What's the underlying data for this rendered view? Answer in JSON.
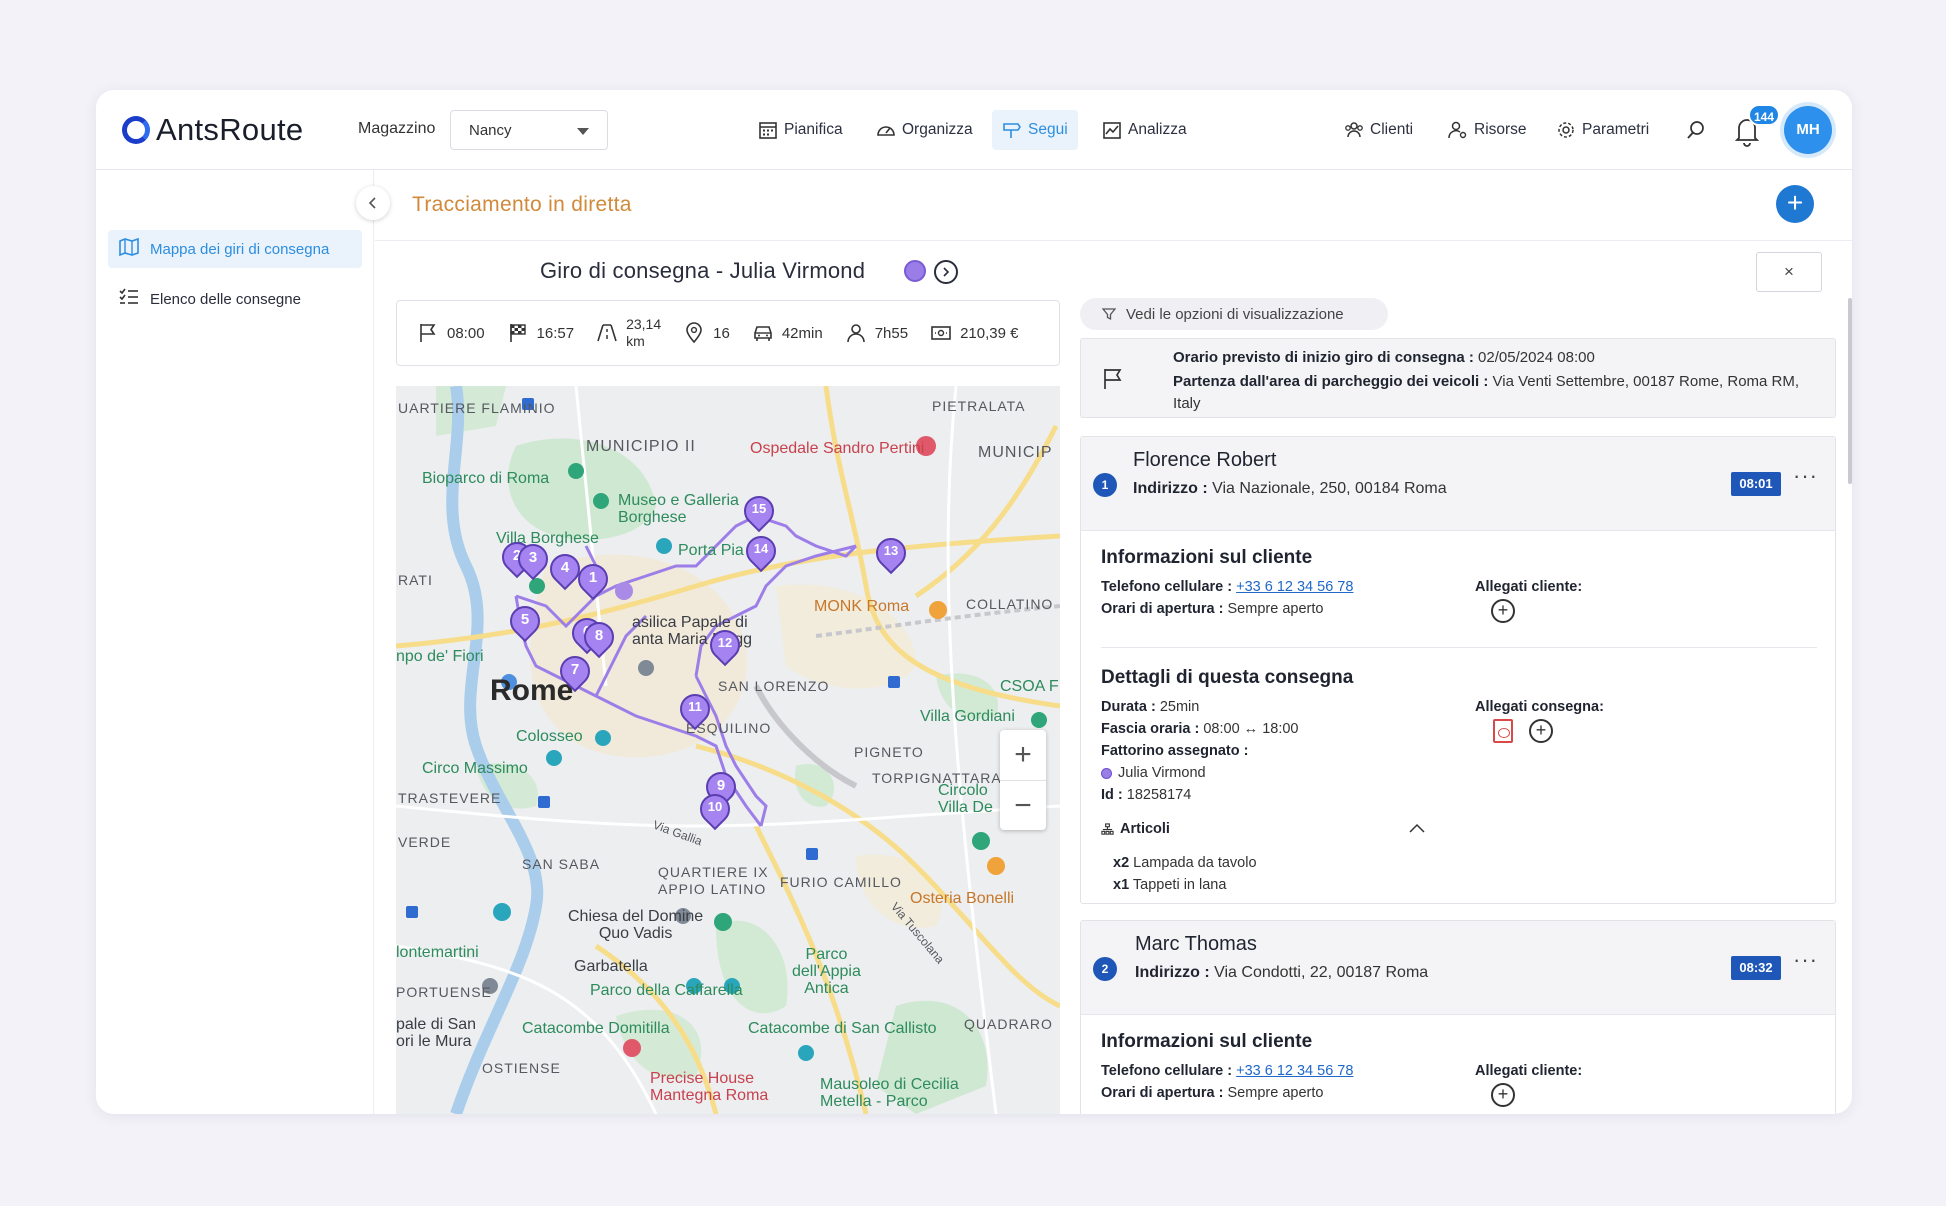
{
  "app": {
    "logo_text": "AntsRoute",
    "warehouse_label": "Magazzino",
    "warehouse_value": "Nancy"
  },
  "nav": {
    "pianifica": "Pianifica",
    "organizza": "Organizza",
    "segui": "Segui",
    "analizza": "Analizza",
    "clienti": "Clienti",
    "risorse": "Risorse",
    "parametri": "Parametri",
    "notifications_count": "144",
    "avatar_initials": "MH"
  },
  "sidebar": {
    "items": [
      {
        "label": "Mappa dei giri di consegna",
        "icon": "map-icon",
        "active": true
      },
      {
        "label": "Elenco delle consegne",
        "icon": "list-icon",
        "active": false
      }
    ]
  },
  "page": {
    "title": "Tracciamento in diretta",
    "route_title": "Giro di consegna - Julia Virmond",
    "route_color": "#9a7de6",
    "close_label": "×"
  },
  "stats": {
    "start": "08:00",
    "end": "16:57",
    "distance_value": "23,14",
    "distance_unit": "km",
    "stops": "16",
    "drive_time": "42min",
    "work_time": "7h55",
    "cost": "210,39 €"
  },
  "map": {
    "labels": {
      "quartiere_flaminio": "UARTIERE\nFLAMINIO",
      "municipio_ii": "MUNICIPIO II",
      "pietralata": "PIETRALATA",
      "municip": "MUNICIP",
      "rome": "Rome",
      "ospedale": "Ospedale Sandro Pertini",
      "bioparco": "Bioparco di Roma",
      "museo": "Museo e Galleria\nBorghese",
      "villa_borghese": "Villa Borghese",
      "porta_pia": "Porta Pia",
      "monk": "MONK Roma",
      "collatino": "COLLATINO",
      "prati": "RATI",
      "basilica": "asilica Papale di\nanta Maria Magg",
      "campo_fiori": "npo de' Fiori",
      "san_lorenzo": "SAN LORENZO",
      "csoa": "CSOA F",
      "villa_gordiani": "Villa Gordiani",
      "esquilino": "ESQUILINO",
      "colosseo": "Colosseo",
      "pigneto": "PIGNETO",
      "torpignattara": "TORPIGNATTARA",
      "circo_massimo": "Circo Massimo",
      "circolo": "Circolo\nVilla De",
      "trastevere": "TRASTEVERE",
      "verde": "VERDE",
      "san_saba": "SAN SABA",
      "via_gallia": "Via Gallia",
      "quartiere_ix": "QUARTIERE IX\nAPPIO LATINO",
      "furio": "FURIO CAMILLO",
      "osteria": "Osteria Bonelli",
      "chiesa": "Chiesa del Domine\nQuo Vadis",
      "montemartini": "lontemartini",
      "garbatella": "Garbatella",
      "parco_appia": "Parco\ndell'Appia\nAntica",
      "portuense": "PORTUENSE",
      "parco_caffarella": "Parco della Caffarella",
      "quadraro": "QUADRARO",
      "basilica_san": "pale di San\nori le Mura",
      "domitilla": "Catacombe Domitilla",
      "san_callisto": "Catacombe di San Callisto",
      "ostiense": "OSTIENSE",
      "precise": "Precise House\nMantegna Roma",
      "mausoleo": "Mausoleo di Cecilia\nMetella - Parco",
      "via_tuscolana": "Via Tuscolana"
    },
    "stops": [
      "1",
      "2",
      "3",
      "4",
      "5",
      "6",
      "7",
      "8",
      "9",
      "10",
      "11",
      "12",
      "13",
      "14",
      "15"
    ],
    "zoom_in": "+",
    "zoom_out": "−"
  },
  "panel": {
    "view_options": "Vedi le opzioni di visualizzazione",
    "depart_start_label": "Orario previsto di inizio giro di consegna :",
    "depart_start_value": "02/05/2024 08:00",
    "depart_area_label": "Partenza dall'area di parcheggio dei veicoli :",
    "depart_area_value": "Via Venti Settembre, 00187 Rome, Roma RM, Italy"
  },
  "deliveries": [
    {
      "number": "1",
      "name": "Florence Robert",
      "address_label": "Indirizzo :",
      "address": "Via Nazionale, 250, 00184 Roma",
      "time": "08:01",
      "client_info_title": "Informazioni sul cliente",
      "phone_label": "Telefono cellulare :",
      "phone": "+33 6 12 34 56 78",
      "hours_label": "Orari di apertura :",
      "hours": "Sempre aperto",
      "client_attach_label": "Allegati cliente:",
      "details_title": "Dettagli di questa consegna",
      "duration_label": "Durata :",
      "duration": "25min",
      "slot_label": "Fascia oraria :",
      "slot": "08:00 ↔ 18:00",
      "driver_label": "Fattorino assegnato :",
      "driver": "Julia Virmond",
      "id_label": "Id :",
      "id": "18258174",
      "delivery_attach_label": "Allegati consegna:",
      "articles_label": "Articoli",
      "articles": [
        {
          "qty": "x2",
          "name": "Lampada da tavolo"
        },
        {
          "qty": "x1",
          "name": "Tappeti in lana"
        }
      ]
    },
    {
      "number": "2",
      "name": "Marc Thomas",
      "address_label": "Indirizzo :",
      "address": "Via Condotti, 22, 00187 Roma",
      "time": "08:32",
      "client_info_title": "Informazioni sul cliente",
      "phone_label": "Telefono cellulare :",
      "phone": "+33 6 12 34 56 78",
      "hours_label": "Orari di apertura :",
      "hours": "Sempre aperto",
      "client_attach_label": "Allegati cliente:"
    }
  ]
}
